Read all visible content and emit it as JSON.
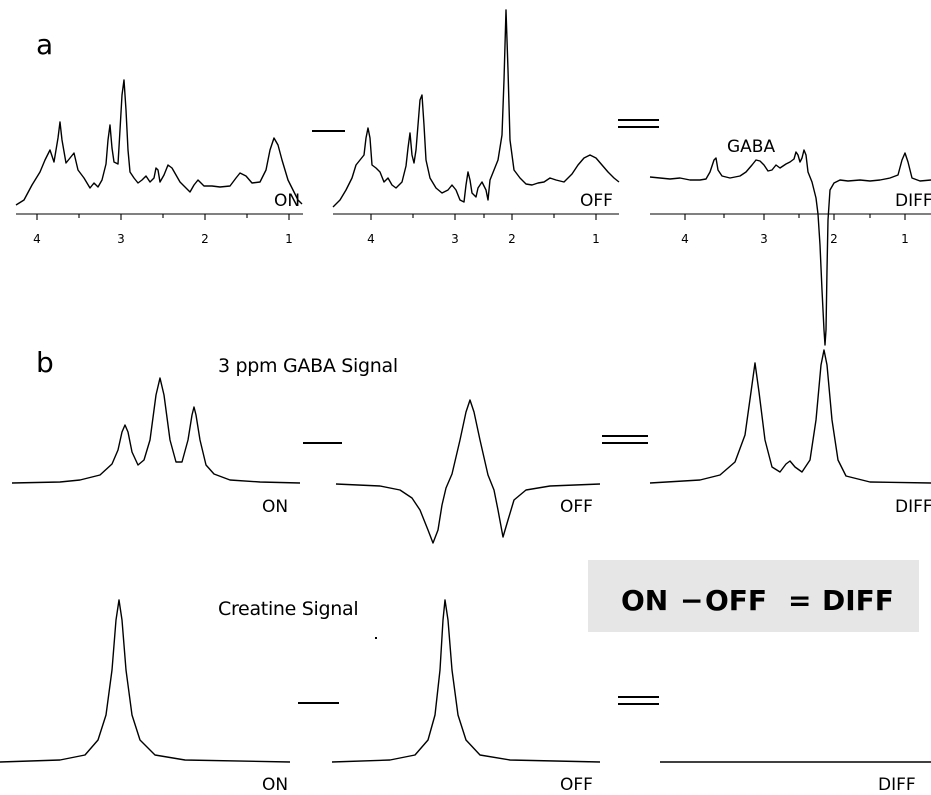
{
  "panel_a": {
    "letter": "a",
    "spectra": [
      {
        "label": "ON"
      },
      {
        "label": "OFF"
      },
      {
        "label": "DIFF"
      }
    ],
    "peak_annotation": "GABA",
    "x_ticks": [
      "4",
      "3",
      "2",
      "1"
    ]
  },
  "panel_b": {
    "letter": "b",
    "gaba_row": {
      "title": "3 ppm GABA Signal",
      "labels": [
        "ON",
        "OFF",
        "DIFF"
      ]
    },
    "creatine_row": {
      "title": "Creatine Signal",
      "labels": [
        "ON",
        "OFF",
        "DIFF"
      ]
    },
    "equation": {
      "left": "ON",
      "operator": "−",
      "middle": "OFF",
      "equals": "=",
      "right": "DIFF",
      "box_color": "#e6e6e6"
    }
  }
}
